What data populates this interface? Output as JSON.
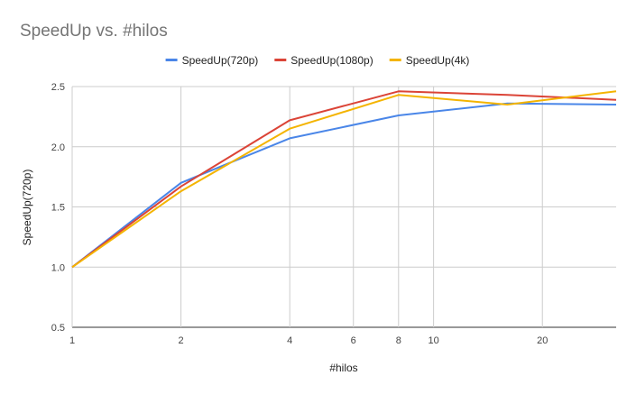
{
  "chart_data": {
    "type": "line",
    "title": "SpeedUp vs. #hilos",
    "xlabel": "#hilos",
    "ylabel": "SpeedUp(720p)",
    "x_scale": "log",
    "xlim": [
      1,
      32
    ],
    "ylim": [
      0.5,
      2.5
    ],
    "x_ticks": [
      1,
      2,
      4,
      6,
      8,
      10,
      20
    ],
    "y_ticks": [
      "0.5",
      "1.0",
      "1.5",
      "2.0",
      "2.5"
    ],
    "grid": true,
    "legend": "top-center",
    "x": [
      1,
      2,
      4,
      8,
      16,
      32
    ],
    "series": [
      {
        "name": "SpeedUp(720p)",
        "color": "#4a86e8",
        "values": [
          1.0,
          1.7,
          2.07,
          2.26,
          2.36,
          2.35
        ]
      },
      {
        "name": "SpeedUp(1080p)",
        "color": "#db4437",
        "values": [
          1.0,
          1.67,
          2.22,
          2.46,
          2.43,
          2.39
        ]
      },
      {
        "name": "SpeedUp(4k)",
        "color": "#f4b400",
        "values": [
          1.0,
          1.63,
          2.15,
          2.43,
          2.35,
          2.46
        ]
      }
    ]
  }
}
